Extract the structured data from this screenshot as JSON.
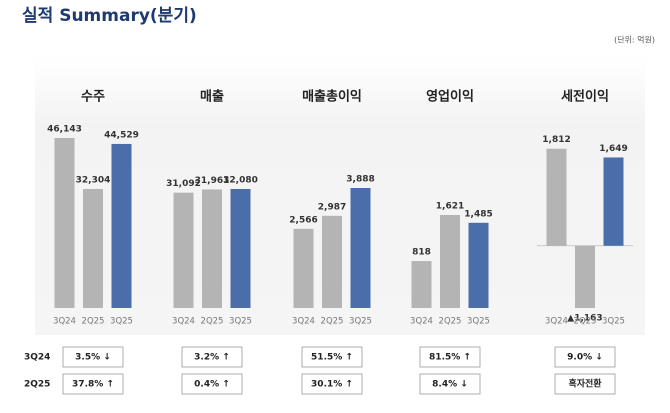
{
  "title": "실적 Summary(분기)",
  "unit": "(단위: 억원)",
  "chart_data": [
    {
      "type": "bar",
      "title": "수주",
      "categories": [
        "3Q24",
        "2Q25",
        "3Q25"
      ],
      "values": [
        46143,
        32304,
        44529
      ],
      "value_labels": [
        "46,143",
        "32,304",
        "44,529"
      ],
      "colors": [
        "#b4b4b4",
        "#b4b4b4",
        "#4a6ea9"
      ]
    },
    {
      "type": "bar",
      "title": "매출",
      "categories": [
        "3Q24",
        "2Q25",
        "3Q25"
      ],
      "values": [
        31092,
        31961,
        32080
      ],
      "value_labels": [
        "31,092",
        "31,961",
        "32,080"
      ],
      "colors": [
        "#b4b4b4",
        "#b4b4b4",
        "#4a6ea9"
      ]
    },
    {
      "type": "bar",
      "title": "매출총이익",
      "categories": [
        "3Q24",
        "2Q25",
        "3Q25"
      ],
      "values": [
        2566,
        2987,
        3888
      ],
      "value_labels": [
        "2,566",
        "2,987",
        "3,888"
      ],
      "colors": [
        "#b4b4b4",
        "#b4b4b4",
        "#4a6ea9"
      ]
    },
    {
      "type": "bar",
      "title": "영업이익",
      "categories": [
        "3Q24",
        "2Q25",
        "3Q25"
      ],
      "values": [
        818,
        1621,
        1485
      ],
      "value_labels": [
        "818",
        "1,621",
        "1,485"
      ],
      "colors": [
        "#b4b4b4",
        "#b4b4b4",
        "#4a6ea9"
      ]
    },
    {
      "type": "bar",
      "title": "세전이익",
      "categories": [
        "3Q24",
        "2Q25",
        "3Q25"
      ],
      "values": [
        1812,
        -1163,
        1649
      ],
      "value_labels": [
        "1,812",
        "▲1,163",
        "1,649"
      ],
      "colors": [
        "#b4b4b4",
        "#b4b4b4",
        "#4a6ea9"
      ]
    }
  ],
  "comparison": {
    "rows": [
      {
        "label": "3Q24",
        "cells": [
          "3.5% ↓",
          "3.2% ↑",
          "51.5% ↑",
          "81.5% ↑",
          "9.0% ↓"
        ]
      },
      {
        "label": "2Q25",
        "cells": [
          "37.8% ↑",
          "0.4% ↑",
          "30.1% ↑",
          "8.4% ↓",
          "흑자전환"
        ]
      }
    ]
  }
}
